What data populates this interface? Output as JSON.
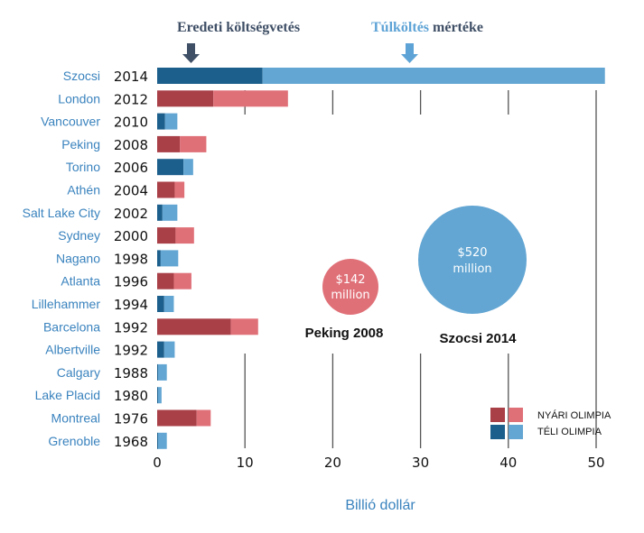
{
  "headers": {
    "original_budget": "Eredeti költségvetés",
    "overrun_word": "Túlköltés",
    "overrun_rest": "mértéke"
  },
  "colors": {
    "summer_dark": "#A93F47",
    "summer_light": "#E07078",
    "winter_dark": "#1C5F8C",
    "winter_light": "#63A6D3",
    "label_blue": "#3A83BE",
    "header_dark": "#3F4F66",
    "arrow_dark": "#3F4F66",
    "arrow_light": "#5EA3D6",
    "gridline": "#555555"
  },
  "icons": {
    "header_left_arrow": "down-arrow-icon",
    "header_right_arrow": "down-arrow-icon"
  },
  "chart_data": {
    "type": "bar",
    "orientation": "horizontal",
    "stacked": true,
    "xlabel": "Billió dollár",
    "xlim": [
      0,
      52
    ],
    "xticks": [
      0,
      10,
      20,
      30,
      40,
      50
    ],
    "grid": true,
    "legend": {
      "position": "bottom-right",
      "entries": [
        "NYÁRI OLIMPIA",
        "TÉLI OLIMPIA"
      ]
    },
    "categories": [
      {
        "city": "Szocsi",
        "year": "2014",
        "season": "winter"
      },
      {
        "city": "London",
        "year": "2012",
        "season": "summer"
      },
      {
        "city": "Vancouver",
        "year": "2010",
        "season": "winter"
      },
      {
        "city": "Peking",
        "year": "2008",
        "season": "summer"
      },
      {
        "city": "Torino",
        "year": "2006",
        "season": "winter"
      },
      {
        "city": "Athén",
        "year": "2004",
        "season": "summer"
      },
      {
        "city": "Salt Lake City",
        "year": "2002",
        "season": "winter"
      },
      {
        "city": "Sydney",
        "year": "2000",
        "season": "summer"
      },
      {
        "city": "Nagano",
        "year": "1998",
        "season": "winter"
      },
      {
        "city": "Atlanta",
        "year": "1996",
        "season": "summer"
      },
      {
        "city": "Lillehammer",
        "year": "1994",
        "season": "winter"
      },
      {
        "city": "Barcelona",
        "year": "1992",
        "season": "summer"
      },
      {
        "city": "Albertville",
        "year": "1992",
        "season": "winter"
      },
      {
        "city": "Calgary",
        "year": "1988",
        "season": "winter"
      },
      {
        "city": "Lake Placid",
        "year": "1980",
        "season": "winter"
      },
      {
        "city": "Montreal",
        "year": "1976",
        "season": "summer"
      },
      {
        "city": "Grenoble",
        "year": "1968",
        "season": "winter"
      }
    ],
    "series": [
      {
        "name": "Eredeti költségvetés",
        "values": [
          12.0,
          6.4,
          0.9,
          2.6,
          3.0,
          2.0,
          0.6,
          2.1,
          0.4,
          1.9,
          0.8,
          8.4,
          0.8,
          0.1,
          0.1,
          4.5,
          0.1
        ]
      },
      {
        "name": "Túlköltés mértéke",
        "values": [
          39.0,
          8.5,
          1.4,
          3.0,
          1.1,
          1.1,
          1.7,
          2.1,
          2.0,
          2.0,
          1.1,
          3.1,
          1.2,
          1.0,
          0.4,
          1.6,
          1.0
        ]
      }
    ],
    "annotations": [
      {
        "value": "$142",
        "unit": "million",
        "label": "Peking 2008",
        "season": "summer"
      },
      {
        "value": "$520",
        "unit": "million",
        "label": "Szocsi 2014",
        "season": "winter"
      }
    ]
  }
}
